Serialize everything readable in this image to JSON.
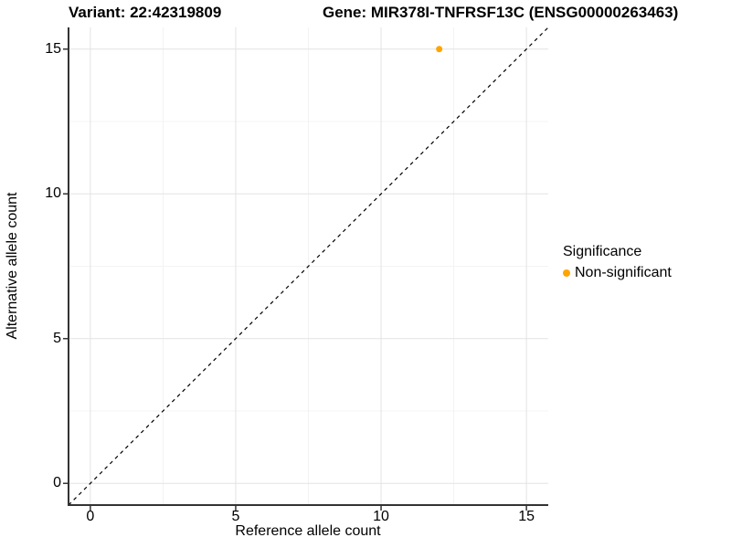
{
  "figure": {
    "title_left": "Variant: 22:42319809",
    "title_right": "Gene: MIR378I-TNFRSF13C (ENSG00000263463)"
  },
  "chart_data": {
    "type": "scatter",
    "xlabel": "Reference allele count",
    "ylabel": "Alternative allele count",
    "xlim": [
      -0.75,
      15.75
    ],
    "ylim": [
      -0.75,
      15.75
    ],
    "x_ticks": [
      0,
      5,
      10,
      15
    ],
    "y_ticks": [
      0,
      5,
      10,
      15
    ],
    "x_minor_ticks": [
      2.5,
      7.5,
      12.5
    ],
    "y_minor_ticks": [
      2.5,
      7.5,
      12.5
    ],
    "grid": "major-and-minor",
    "identity_line": {
      "style": "dashed",
      "color": "#000000",
      "from": [
        -0.75,
        -0.75
      ],
      "to": [
        15.75,
        15.75
      ]
    },
    "series": [
      {
        "name": "Non-significant",
        "color": "#FFA500",
        "points": [
          {
            "x": 12,
            "y": 15
          }
        ]
      }
    ],
    "legend": {
      "title": "Significance",
      "position": "right",
      "entries": [
        {
          "label": "Non-significant",
          "color": "#FFA500"
        }
      ]
    }
  },
  "colors": {
    "background": "#FFFFFF",
    "axis_line": "#333333",
    "major_grid": "#E3E3E3",
    "minor_grid": "#F0F0F0",
    "text": "#000000",
    "point": "#FFA500"
  }
}
